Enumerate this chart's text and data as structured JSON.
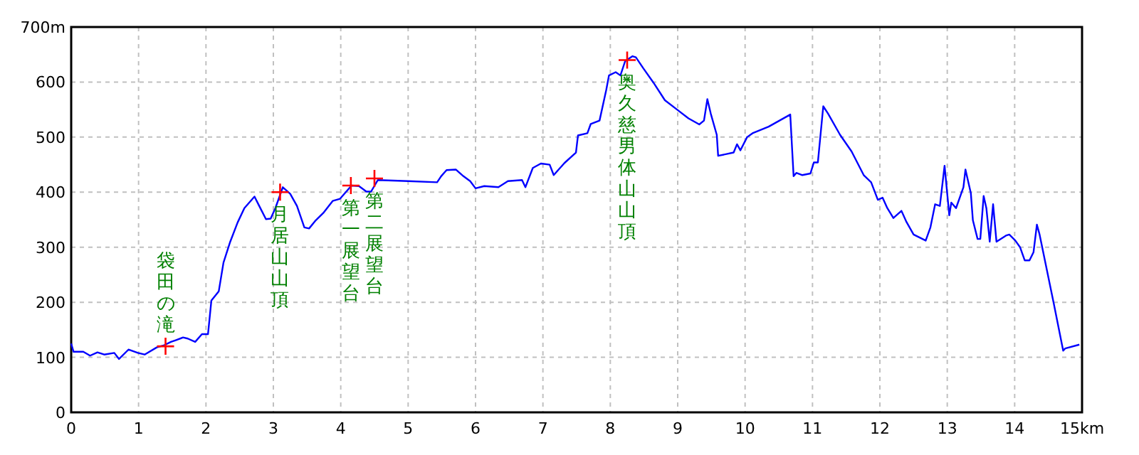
{
  "chart_data": {
    "type": "line",
    "xlim": [
      0,
      15
    ],
    "ylim": [
      0,
      700
    ],
    "xticks": [
      0,
      1,
      2,
      3,
      4,
      5,
      6,
      7,
      8,
      9,
      10,
      11,
      12,
      13,
      14,
      {
        "value": 15,
        "label": "15km"
      }
    ],
    "yticks": [
      0,
      100,
      200,
      300,
      400,
      500,
      600,
      {
        "value": 700,
        "label": "700m"
      }
    ],
    "grid": true,
    "series": [
      {
        "type": "line",
        "color": "#0000ff",
        "line_style": "solid",
        "marker": "none",
        "x": [
          0,
          0.035,
          0.18,
          0.28,
          0.39,
          0.49,
          0.64,
          0.71,
          0.85,
          0.99,
          1.09,
          1.27,
          1.38,
          1.48,
          1.55,
          1.66,
          1.73,
          1.84,
          1.94,
          2.03,
          2.08,
          2.19,
          2.26,
          2.36,
          2.47,
          2.57,
          2.72,
          2.79,
          2.89,
          2.96,
          3.03,
          3.14,
          3.25,
          3.35,
          3.46,
          3.53,
          3.63,
          3.74,
          3.88,
          3.99,
          4.16,
          4.27,
          4.38,
          4.45,
          4.55,
          5.0,
          5.43,
          5.49,
          5.57,
          5.71,
          5.82,
          5.92,
          6.0,
          6.13,
          6.34,
          6.48,
          6.69,
          6.74,
          6.85,
          6.97,
          7.1,
          7.16,
          7.32,
          7.49,
          7.52,
          7.66,
          7.71,
          7.84,
          7.94,
          7.98,
          8.08,
          8.15,
          8.22,
          8.33,
          8.38,
          8.49,
          8.64,
          8.81,
          8.99,
          9.16,
          9.32,
          9.39,
          9.44,
          9.49,
          9.58,
          9.6,
          9.83,
          9.88,
          9.93,
          10.03,
          10.11,
          10.35,
          10.67,
          10.69,
          10.72,
          10.76,
          10.85,
          10.97,
          11.02,
          11.08,
          11.16,
          11.23,
          11.41,
          11.58,
          11.76,
          11.87,
          11.97,
          12.04,
          12.11,
          12.2,
          12.32,
          12.39,
          12.5,
          12.68,
          12.75,
          12.82,
          12.89,
          12.96,
          13.03,
          13.06,
          13.13,
          13.24,
          13.27,
          13.35,
          13.38,
          13.45,
          13.49,
          13.54,
          13.58,
          13.63,
          13.68,
          13.73,
          13.87,
          13.92,
          14.01,
          14.08,
          14.15,
          14.22,
          14.28,
          14.33,
          14.37,
          14.58,
          14.72,
          14.75,
          14.96
        ],
        "values": [
          125,
          110,
          110,
          103,
          109,
          105,
          108,
          97,
          114,
          108,
          105,
          118,
          122,
          128,
          131,
          136,
          134,
          128,
          142,
          142,
          203,
          220,
          272,
          310,
          345,
          371,
          392,
          375,
          351,
          352,
          371,
          409,
          397,
          375,
          336,
          334,
          349,
          362,
          384,
          388,
          412,
          411,
          401,
          401,
          422,
          420,
          418,
          429,
          440,
          441,
          429,
          420,
          407,
          411,
          409,
          420,
          422,
          409,
          444,
          452,
          450,
          431,
          453,
          472,
          503,
          507,
          524,
          530,
          586,
          612,
          618,
          612,
          638,
          647,
          645,
          625,
          599,
          567,
          550,
          534,
          523,
          530,
          569,
          543,
          504,
          466,
          472,
          487,
          476,
          500,
          507,
          519,
          541,
          496,
          429,
          435,
          431,
          434,
          454,
          454,
          556,
          543,
          504,
          474,
          431,
          418,
          386,
          390,
          371,
          353,
          366,
          347,
          323,
          312,
          336,
          378,
          375,
          448,
          358,
          381,
          371,
          409,
          441,
          398,
          349,
          315,
          315,
          393,
          371,
          310,
          378,
          310,
          321,
          323,
          312,
          300,
          276,
          276,
          291,
          341,
          323,
          198,
          112,
          116,
          123
        ]
      },
      {
        "type": "scatter",
        "color": "#ff0000",
        "marker": "cross",
        "x": [
          1.4,
          3.1,
          4.15,
          4.5,
          8.25
        ],
        "values": [
          120,
          400,
          412,
          425,
          640
        ]
      }
    ],
    "annotations": [
      {
        "text": "袋田の滝",
        "x": 1.4,
        "y": 120
      },
      {
        "text": "月居山山頂",
        "x": 3.1,
        "y": 400
      },
      {
        "text": "第一展望台",
        "x": 4.15,
        "y": 412
      },
      {
        "text": "第二展望台",
        "x": 4.5,
        "y": 425
      },
      {
        "text": "奥久慈男体山山頂",
        "x": 8.25,
        "y": 640
      }
    ]
  }
}
